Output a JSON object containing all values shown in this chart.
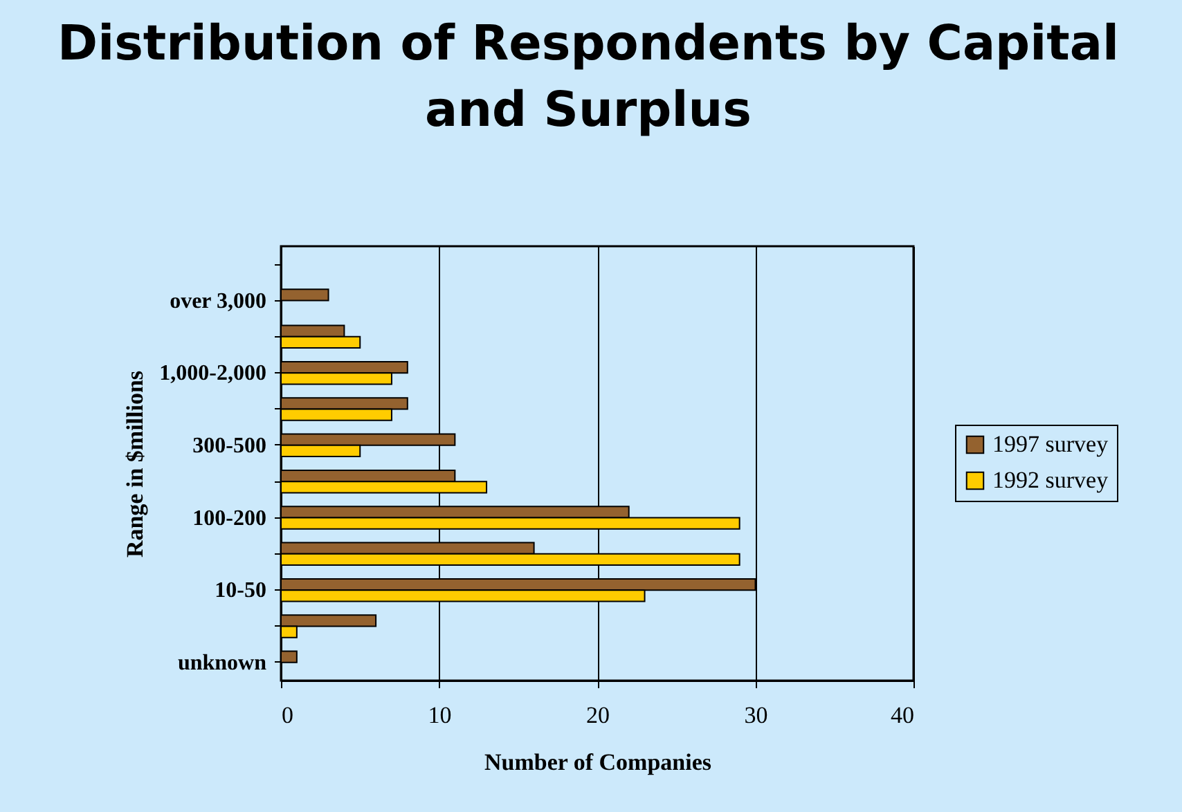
{
  "chart_data": {
    "type": "bar",
    "orientation": "horizontal",
    "title": "Distribution of Respondents by Capital and Surplus",
    "xlabel": "Number of Companies",
    "ylabel": "Range in $millions",
    "categories": [
      null,
      "over 3,000",
      null,
      "1,000-2,000",
      null,
      "300-500",
      null,
      "100-200",
      null,
      "10-50",
      null,
      "unknown"
    ],
    "series": [
      {
        "name": "1997 survey",
        "color": "#94622f",
        "values": [
          null,
          3,
          4,
          8,
          8,
          11,
          11,
          22,
          16,
          30,
          6,
          1
        ]
      },
      {
        "name": "1992 survey",
        "color": "#ffcc00",
        "values": [
          null,
          null,
          5,
          7,
          7,
          5,
          13,
          29,
          29,
          23,
          1,
          null
        ]
      }
    ],
    "xlim": [
      0,
      40
    ],
    "xticks": [
      0,
      10,
      20,
      30,
      40
    ],
    "grid": "x",
    "legend": "right"
  }
}
